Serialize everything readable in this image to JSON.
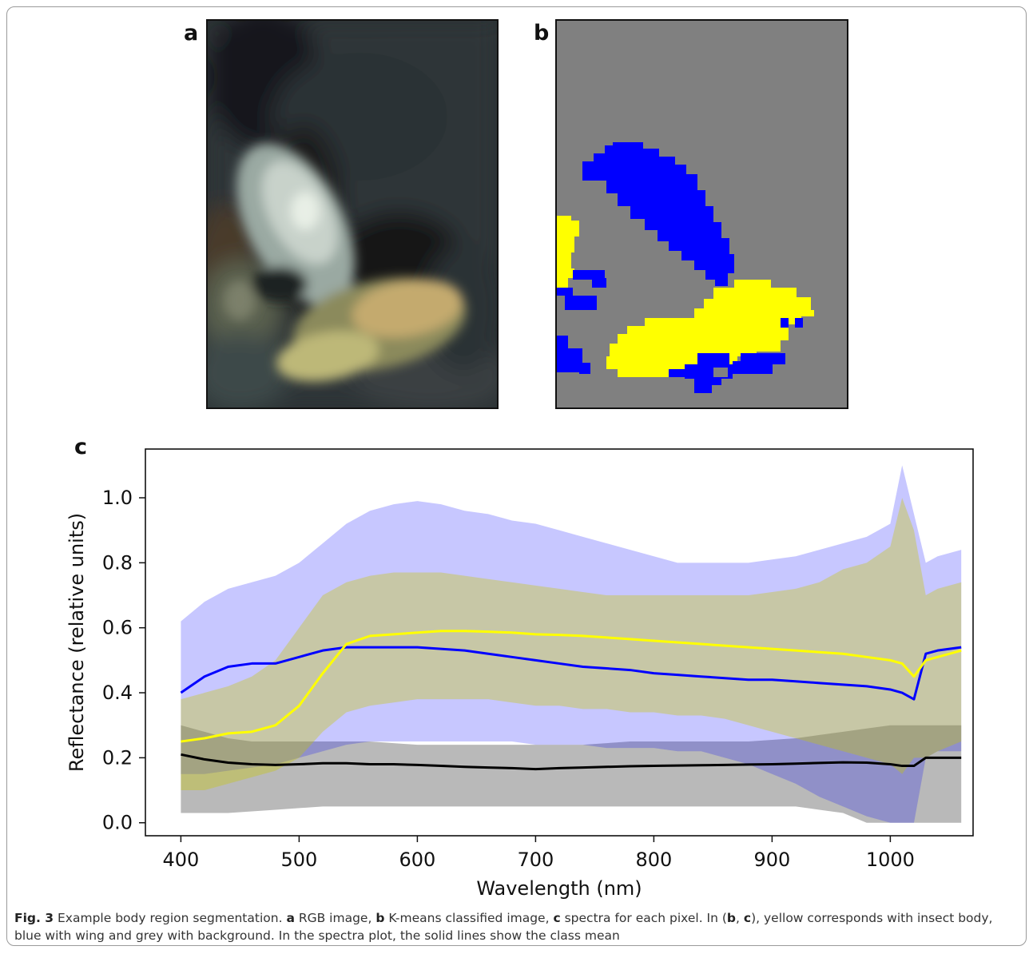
{
  "panels": {
    "a_label": "a",
    "b_label": "b",
    "c_label": "c"
  },
  "colors": {
    "body_class": "#ffff00",
    "wing_class": "#0000ff",
    "background_class": "#808080",
    "mean_background_line": "#000000"
  },
  "caption": {
    "fig_label": "Fig. 3",
    "intro": "Example body region segmentation.",
    "a": "a",
    "a_text": "RGB image,",
    "b": "b",
    "b_text": "K-means classified image,",
    "c": "c",
    "c_text": "spectra for each pixel. In (",
    "b2": "b",
    "sep": ", ",
    "c2": "c",
    "rest": "), yellow corresponds with insect body, blue with wing and grey with background. In the spectra plot, the solid lines show the class mean"
  },
  "chart_data": {
    "type": "line",
    "xlabel": "Wavelength (nm)",
    "ylabel": "Reflectance (relative units)",
    "xlim": [
      370,
      1070
    ],
    "ylim": [
      -0.04,
      1.15
    ],
    "x_ticks": [
      400,
      500,
      600,
      700,
      800,
      900,
      1000
    ],
    "x_tick_labels": [
      "400",
      "500",
      "600",
      "700",
      "800",
      "900",
      "1000"
    ],
    "y_ticks": [
      0.0,
      0.2,
      0.4,
      0.6,
      0.8,
      1.0
    ],
    "y_tick_labels": [
      "0.0",
      "0.2",
      "0.4",
      "0.6",
      "0.8",
      "1.0"
    ],
    "grid": false,
    "x": [
      400,
      420,
      440,
      460,
      480,
      500,
      520,
      540,
      560,
      580,
      600,
      620,
      640,
      660,
      680,
      700,
      720,
      740,
      760,
      780,
      800,
      820,
      840,
      860,
      880,
      900,
      920,
      940,
      960,
      980,
      1000,
      1010,
      1020,
      1030,
      1040,
      1060
    ],
    "series": [
      {
        "color": "#0000ff",
        "values": [
          0.4,
          0.45,
          0.48,
          0.49,
          0.49,
          0.51,
          0.53,
          0.54,
          0.54,
          0.54,
          0.54,
          0.535,
          0.53,
          0.52,
          0.51,
          0.5,
          0.49,
          0.48,
          0.475,
          0.47,
          0.46,
          0.455,
          0.45,
          0.445,
          0.44,
          0.44,
          0.435,
          0.43,
          0.425,
          0.42,
          0.41,
          0.4,
          0.38,
          0.52,
          0.53,
          0.54
        ]
      },
      {
        "color": "#ffff00",
        "values": [
          0.25,
          0.26,
          0.275,
          0.28,
          0.3,
          0.36,
          0.46,
          0.55,
          0.575,
          0.58,
          0.585,
          0.59,
          0.59,
          0.588,
          0.585,
          0.58,
          0.578,
          0.575,
          0.57,
          0.565,
          0.56,
          0.555,
          0.55,
          0.545,
          0.54,
          0.535,
          0.53,
          0.525,
          0.52,
          0.51,
          0.5,
          0.49,
          0.45,
          0.5,
          0.51,
          0.53
        ]
      },
      {
        "color": "#000000",
        "values": [
          0.21,
          0.195,
          0.185,
          0.18,
          0.178,
          0.18,
          0.183,
          0.183,
          0.18,
          0.18,
          0.178,
          0.175,
          0.172,
          0.17,
          0.168,
          0.165,
          0.168,
          0.17,
          0.172,
          0.174,
          0.175,
          0.176,
          0.177,
          0.178,
          0.179,
          0.18,
          0.182,
          0.184,
          0.186,
          0.185,
          0.18,
          0.175,
          0.175,
          0.2,
          0.2,
          0.2
        ]
      }
    ],
    "bands": [
      {
        "color": "#808080",
        "low": [
          0.03,
          0.03,
          0.03,
          0.035,
          0.04,
          0.045,
          0.05,
          0.05,
          0.05,
          0.05,
          0.05,
          0.05,
          0.05,
          0.05,
          0.05,
          0.05,
          0.05,
          0.05,
          0.05,
          0.05,
          0.05,
          0.05,
          0.05,
          0.05,
          0.05,
          0.05,
          0.05,
          0.04,
          0.03,
          0.0,
          0.0,
          0.0,
          0.0,
          0.0,
          0.0,
          0.0
        ],
        "high": [
          0.3,
          0.28,
          0.26,
          0.25,
          0.25,
          0.25,
          0.25,
          0.25,
          0.25,
          0.245,
          0.24,
          0.24,
          0.24,
          0.24,
          0.24,
          0.24,
          0.24,
          0.24,
          0.245,
          0.25,
          0.25,
          0.25,
          0.25,
          0.25,
          0.25,
          0.255,
          0.26,
          0.27,
          0.28,
          0.29,
          0.3,
          0.3,
          0.3,
          0.3,
          0.3,
          0.3
        ]
      },
      {
        "color": "#0000ff",
        "low": [
          0.15,
          0.15,
          0.16,
          0.17,
          0.18,
          0.2,
          0.22,
          0.24,
          0.25,
          0.25,
          0.25,
          0.25,
          0.25,
          0.25,
          0.25,
          0.24,
          0.24,
          0.24,
          0.23,
          0.23,
          0.23,
          0.22,
          0.22,
          0.2,
          0.18,
          0.15,
          0.12,
          0.08,
          0.05,
          0.02,
          0.0,
          0.0,
          0.0,
          0.2,
          0.22,
          0.22
        ],
        "high": [
          0.62,
          0.68,
          0.72,
          0.74,
          0.76,
          0.8,
          0.86,
          0.92,
          0.96,
          0.98,
          0.99,
          0.98,
          0.96,
          0.95,
          0.93,
          0.92,
          0.9,
          0.88,
          0.86,
          0.84,
          0.82,
          0.8,
          0.8,
          0.8,
          0.8,
          0.81,
          0.82,
          0.84,
          0.86,
          0.88,
          0.92,
          1.1,
          0.95,
          0.8,
          0.82,
          0.84
        ]
      },
      {
        "color": "#c8c800",
        "low": [
          0.1,
          0.1,
          0.12,
          0.14,
          0.16,
          0.2,
          0.28,
          0.34,
          0.36,
          0.37,
          0.38,
          0.38,
          0.38,
          0.38,
          0.37,
          0.36,
          0.36,
          0.35,
          0.35,
          0.34,
          0.34,
          0.33,
          0.33,
          0.32,
          0.3,
          0.28,
          0.26,
          0.24,
          0.22,
          0.2,
          0.18,
          0.15,
          0.2,
          0.2,
          0.22,
          0.25
        ],
        "high": [
          0.38,
          0.4,
          0.42,
          0.45,
          0.5,
          0.6,
          0.7,
          0.74,
          0.76,
          0.77,
          0.77,
          0.77,
          0.76,
          0.75,
          0.74,
          0.73,
          0.72,
          0.71,
          0.7,
          0.7,
          0.7,
          0.7,
          0.7,
          0.7,
          0.7,
          0.71,
          0.72,
          0.74,
          0.78,
          0.8,
          0.85,
          1.0,
          0.9,
          0.7,
          0.72,
          0.74
        ]
      }
    ]
  }
}
